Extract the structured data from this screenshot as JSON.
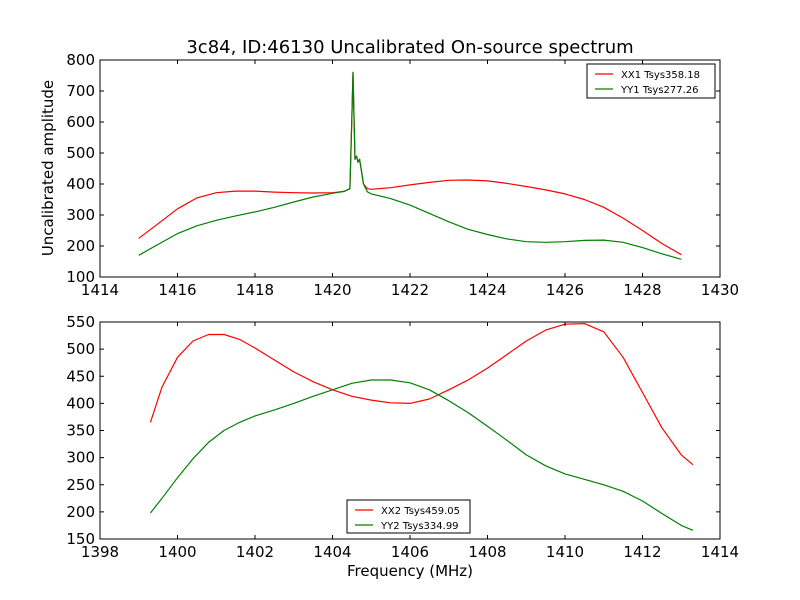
{
  "figure": {
    "title": "3c84, ID:46130 Uncalibrated On-source spectrum",
    "xlabel": "Frequency (MHz)",
    "ylabel": "Uncalibrated amplitude"
  },
  "chart_data": [
    {
      "type": "line",
      "xlim": [
        1414,
        1430
      ],
      "ylim": [
        100,
        800
      ],
      "xticks": [
        1414,
        1416,
        1418,
        1420,
        1422,
        1424,
        1426,
        1428,
        1430
      ],
      "yticks": [
        100,
        200,
        300,
        400,
        500,
        600,
        700,
        800
      ],
      "legend_position": "top-right",
      "grid": false,
      "series": [
        {
          "name": "XX1 Tsys358.18",
          "color": "#ff0000",
          "x": [
            1415.0,
            1415.5,
            1416.0,
            1416.5,
            1417.0,
            1417.5,
            1418.0,
            1418.5,
            1419.0,
            1419.5,
            1420.0,
            1420.3,
            1420.45,
            1420.5,
            1420.53,
            1420.58,
            1420.62,
            1420.66,
            1420.7,
            1420.8,
            1420.9,
            1421.0,
            1421.5,
            1422.0,
            1422.5,
            1423.0,
            1423.5,
            1424.0,
            1424.5,
            1425.0,
            1425.5,
            1426.0,
            1426.5,
            1427.0,
            1427.5,
            1428.0,
            1428.5,
            1429.0
          ],
          "y": [
            225,
            272,
            320,
            355,
            372,
            377,
            377,
            374,
            372,
            371,
            372,
            376,
            385,
            620,
            760,
            480,
            490,
            470,
            480,
            400,
            385,
            383,
            388,
            397,
            405,
            412,
            413,
            410,
            402,
            392,
            381,
            368,
            350,
            325,
            290,
            250,
            208,
            172
          ]
        },
        {
          "name": "YY1 Tsys277.26",
          "color": "#008000",
          "x": [
            1415.0,
            1415.5,
            1416.0,
            1416.5,
            1417.0,
            1417.5,
            1418.0,
            1418.5,
            1419.0,
            1419.5,
            1420.0,
            1420.3,
            1420.45,
            1420.5,
            1420.53,
            1420.58,
            1420.62,
            1420.66,
            1420.7,
            1420.8,
            1420.9,
            1421.0,
            1421.5,
            1422.0,
            1422.5,
            1423.0,
            1423.5,
            1424.0,
            1424.5,
            1425.0,
            1425.5,
            1426.0,
            1426.5,
            1427.0,
            1427.5,
            1428.0,
            1428.5,
            1429.0
          ],
          "y": [
            170,
            205,
            240,
            265,
            283,
            297,
            310,
            325,
            342,
            358,
            370,
            376,
            385,
            620,
            760,
            480,
            490,
            470,
            480,
            400,
            375,
            368,
            353,
            332,
            305,
            278,
            254,
            237,
            223,
            214,
            212,
            214,
            218,
            219,
            212,
            195,
            175,
            157
          ]
        }
      ]
    },
    {
      "type": "line",
      "xlim": [
        1398,
        1414
      ],
      "ylim": [
        150,
        550
      ],
      "xticks": [
        1398,
        1400,
        1402,
        1404,
        1406,
        1408,
        1410,
        1412,
        1414
      ],
      "yticks": [
        150,
        200,
        250,
        300,
        350,
        400,
        450,
        500,
        550
      ],
      "legend_position": "bottom-center",
      "grid": false,
      "series": [
        {
          "name": "XX2 Tsys459.05",
          "color": "#ff0000",
          "x": [
            1399.3,
            1399.6,
            1400.0,
            1400.4,
            1400.8,
            1401.2,
            1401.6,
            1402.0,
            1402.5,
            1403.0,
            1403.5,
            1404.0,
            1404.5,
            1405.0,
            1405.5,
            1406.0,
            1406.5,
            1407.0,
            1407.5,
            1408.0,
            1408.5,
            1409.0,
            1409.5,
            1410.0,
            1410.5,
            1411.0,
            1411.5,
            1412.0,
            1412.5,
            1413.0,
            1413.3
          ],
          "y": [
            365,
            430,
            485,
            515,
            527,
            527,
            518,
            502,
            480,
            458,
            440,
            425,
            413,
            406,
            401,
            400,
            408,
            425,
            443,
            465,
            490,
            515,
            535,
            546,
            547,
            532,
            485,
            420,
            355,
            305,
            287
          ]
        },
        {
          "name": "YY2 Tsys334.99",
          "color": "#008000",
          "x": [
            1399.3,
            1399.6,
            1400.0,
            1400.4,
            1400.8,
            1401.2,
            1401.6,
            1402.0,
            1402.5,
            1403.0,
            1403.5,
            1404.0,
            1404.5,
            1405.0,
            1405.5,
            1406.0,
            1406.5,
            1407.0,
            1407.5,
            1408.0,
            1408.5,
            1409.0,
            1409.5,
            1410.0,
            1410.5,
            1411.0,
            1411.5,
            1412.0,
            1412.5,
            1413.0,
            1413.3
          ],
          "y": [
            198,
            225,
            263,
            298,
            328,
            350,
            365,
            377,
            388,
            400,
            413,
            425,
            437,
            443,
            443,
            438,
            425,
            405,
            383,
            358,
            332,
            305,
            285,
            270,
            260,
            250,
            238,
            220,
            197,
            175,
            166
          ]
        }
      ]
    }
  ]
}
